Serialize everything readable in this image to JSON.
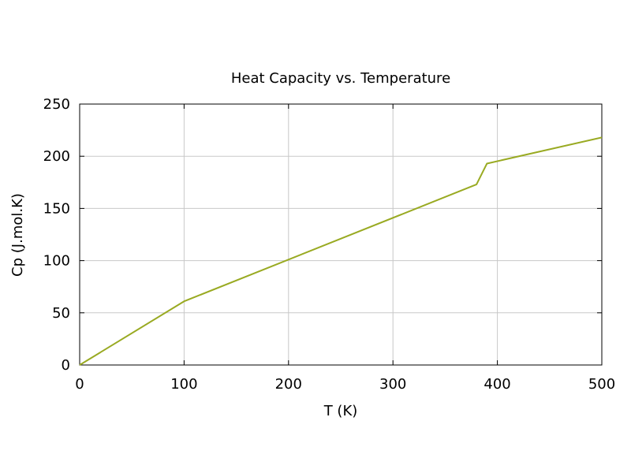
{
  "chart_data": {
    "type": "line",
    "title": "Heat Capacity vs. Temperature",
    "xlabel": "T (K)",
    "ylabel": "Cp (J.mol.K)",
    "xlim": [
      0,
      500
    ],
    "ylim": [
      0,
      250
    ],
    "xticks": [
      0,
      100,
      200,
      300,
      400,
      500
    ],
    "yticks": [
      0,
      50,
      100,
      150,
      200,
      250
    ],
    "grid": true,
    "series": [
      {
        "name": "Cp",
        "color": "#99aa22",
        "x": [
          0,
          100,
          380,
          390,
          500
        ],
        "y": [
          0,
          61,
          173,
          193,
          218
        ]
      }
    ]
  }
}
